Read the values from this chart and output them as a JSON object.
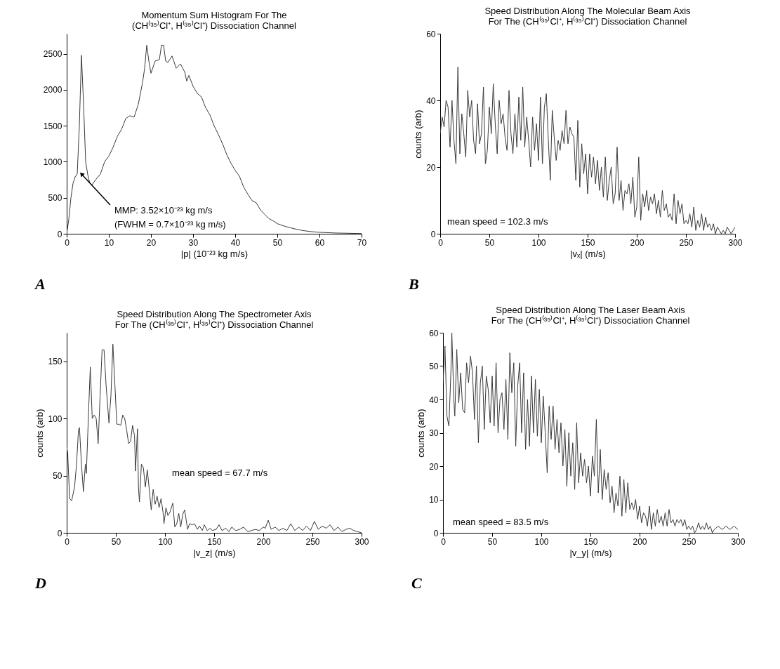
{
  "chart_data": [
    {
      "type": "line",
      "title": "Momentum Sum Histogram For The\n(CH⁽³⁵⁾Cl⁺, H⁽³⁵⁾Cl⁺) Dissociation Channel",
      "xlabel": "|p| (10⁻²³ kg m/s)",
      "xlim": [
        0,
        70
      ],
      "ylim": [
        0,
        2780
      ],
      "xticks": [
        0,
        10,
        20,
        30,
        40,
        50,
        60,
        70
      ],
      "yticks": [
        0,
        500,
        1000,
        1500,
        2000,
        2500
      ],
      "series": [
        {
          "color": "#3a3a3a",
          "x": [
            0,
            0.5,
            1,
            1.5,
            2,
            2.5,
            3,
            3.5,
            4,
            4.5,
            5,
            5.5,
            6,
            7,
            8,
            9,
            10,
            11,
            12,
            13,
            13.5,
            14,
            15,
            16,
            17,
            18,
            18.5,
            19,
            19.5,
            20,
            21,
            22,
            22.5,
            23,
            23.5,
            24,
            25,
            26,
            27,
            28,
            28.5,
            29,
            30,
            31,
            32,
            33,
            34,
            35,
            36,
            37,
            38,
            39,
            40,
            41,
            42,
            43,
            44,
            45,
            46,
            47,
            48,
            49,
            50,
            52,
            54,
            56,
            58,
            60,
            62,
            64,
            66,
            68,
            70
          ],
          "values": [
            0,
            200,
            500,
            700,
            790,
            830,
            1500,
            2480,
            1800,
            1000,
            820,
            700,
            680,
            760,
            830,
            1000,
            1080,
            1200,
            1350,
            1450,
            1520,
            1600,
            1640,
            1620,
            1800,
            2100,
            2300,
            2620,
            2400,
            2230,
            2400,
            2420,
            2620,
            2620,
            2400,
            2380,
            2470,
            2300,
            2360,
            2250,
            2120,
            2200,
            2050,
            1950,
            1900,
            1750,
            1650,
            1500,
            1380,
            1250,
            1100,
            980,
            880,
            800,
            650,
            550,
            460,
            430,
            330,
            270,
            210,
            180,
            140,
            100,
            70,
            45,
            30,
            20,
            15,
            10,
            8,
            5,
            3
          ]
        }
      ],
      "annotations": [
        {
          "text": "MMP: 3.52×10⁻²³ kg m/s",
          "x": 3.52,
          "y": 830
        },
        "(FWHM = 0.7×10⁻²³ kg m/s)",
        "A"
      ]
    },
    {
      "type": "line",
      "title": "Speed Distribution Along The Molecular Beam Axis\nFor The (CH⁽³⁵⁾Cl⁺, H⁽³⁵⁾Cl⁺) Dissociation Channel",
      "xlabel": "|vₓ| (m/s)",
      "ylabel": "counts (arb)",
      "xlim": [
        0,
        300
      ],
      "ylim": [
        0,
        60
      ],
      "xticks": [
        0,
        50,
        100,
        150,
        200,
        250,
        300
      ],
      "yticks": [
        0,
        20,
        40,
        60
      ],
      "series": [
        {
          "color": "#3a3a3a",
          "x": [
            0,
            2,
            4,
            6,
            8,
            10,
            12,
            14,
            16,
            18,
            20,
            22,
            24,
            26,
            28,
            30,
            32,
            34,
            36,
            38,
            40,
            42,
            44,
            46,
            48,
            50,
            52,
            54,
            56,
            58,
            60,
            62,
            64,
            66,
            68,
            70,
            72,
            74,
            76,
            78,
            80,
            82,
            84,
            86,
            88,
            90,
            92,
            94,
            96,
            98,
            100,
            102,
            104,
            106,
            108,
            110,
            112,
            114,
            116,
            118,
            120,
            122,
            124,
            126,
            128,
            130,
            132,
            134,
            136,
            138,
            140,
            142,
            144,
            146,
            148,
            150,
            152,
            154,
            156,
            158,
            160,
            162,
            164,
            166,
            168,
            170,
            172,
            174,
            176,
            178,
            180,
            182,
            184,
            186,
            188,
            190,
            192,
            194,
            196,
            198,
            200,
            202,
            204,
            206,
            208,
            210,
            212,
            214,
            216,
            218,
            220,
            222,
            224,
            226,
            228,
            230,
            232,
            234,
            236,
            238,
            240,
            242,
            244,
            246,
            248,
            250,
            252,
            254,
            256,
            258,
            260,
            262,
            264,
            266,
            268,
            270,
            272,
            274,
            276,
            278,
            280,
            282,
            284,
            286,
            288,
            290,
            292,
            296,
            300
          ],
          "values": [
            30,
            35,
            32,
            40,
            38,
            26,
            40,
            28,
            21,
            50,
            24,
            36,
            30,
            23,
            43,
            35,
            40,
            28,
            24,
            39,
            27,
            30,
            44,
            21,
            25,
            38,
            30,
            45,
            33,
            24,
            40,
            33,
            36,
            29,
            25,
            43,
            30,
            24,
            36,
            26,
            41,
            28,
            44,
            26,
            35,
            28,
            20,
            35,
            25,
            33,
            22,
            41,
            21,
            38,
            42,
            28,
            16,
            37,
            29,
            22,
            28,
            25,
            31,
            27,
            37,
            27,
            32,
            30,
            29,
            16,
            34,
            14,
            27,
            18,
            24,
            12,
            24,
            17,
            23,
            15,
            22,
            13,
            20,
            11,
            23,
            10,
            16,
            20,
            9,
            12,
            26,
            10,
            16,
            7,
            13,
            12,
            15,
            9,
            17,
            5,
            8,
            23,
            4,
            12,
            8,
            13,
            7,
            11,
            9,
            12,
            6,
            10,
            5,
            13,
            7,
            9,
            5,
            6,
            4,
            12,
            3,
            10,
            6,
            9,
            3,
            4,
            3,
            6,
            2,
            8,
            1,
            4,
            2,
            6,
            1,
            5,
            2,
            3,
            1,
            3,
            0,
            2,
            1,
            0,
            1,
            0,
            2,
            0,
            2
          ]
        }
      ],
      "annotations": [
        "mean speed = 102.3 m/s",
        "B"
      ]
    },
    {
      "type": "line",
      "title": "Speed Distribution Along The Spectrometer Axis\nFor The (CH⁽³⁵⁾Cl⁺, H⁽³⁵⁾Cl⁺) Dissociation Channel",
      "xlabel": "|v_z| (m/s)",
      "ylabel": "counts (arb)",
      "xlim": [
        0,
        300
      ],
      "ylim": [
        0,
        175
      ],
      "xticks": [
        0,
        50,
        100,
        150,
        200,
        250,
        300
      ],
      "yticks": [
        0,
        50,
        100,
        150
      ],
      "series": [
        {
          "color": "#3a3a3a",
          "x": [
            0,
            1,
            3,
            5,
            8,
            10,
            12,
            13,
            15,
            17,
            19,
            20,
            22,
            24,
            26,
            28,
            30,
            32,
            34,
            36,
            38,
            40,
            43,
            45,
            47,
            49,
            51,
            53,
            55,
            57,
            59,
            61,
            63,
            65,
            67,
            69,
            70,
            72,
            73,
            74,
            76,
            78,
            80,
            82,
            84,
            86,
            88,
            90,
            92,
            94,
            96,
            98,
            99,
            101,
            103,
            105,
            108,
            110,
            112,
            114,
            116,
            118,
            120,
            123,
            125,
            128,
            130,
            133,
            135,
            138,
            140,
            143,
            146,
            148,
            152,
            155,
            158,
            162,
            165,
            168,
            172,
            176,
            180,
            184,
            188,
            192,
            196,
            200,
            202,
            205,
            208,
            212,
            216,
            220,
            224,
            228,
            232,
            236,
            240,
            244,
            248,
            252,
            256,
            260,
            264,
            268,
            272,
            276,
            280,
            284,
            288,
            292,
            296,
            300
          ],
          "values": [
            75,
            70,
            30,
            28,
            40,
            60,
            90,
            92,
            60,
            36,
            60,
            52,
            100,
            145,
            100,
            103,
            100,
            78,
            120,
            160,
            160,
            130,
            96,
            120,
            165,
            130,
            95,
            95,
            94,
            103,
            100,
            90,
            78,
            80,
            94,
            85,
            54,
            91,
            40,
            27,
            60,
            57,
            40,
            55,
            38,
            20,
            38,
            25,
            32,
            22,
            30,
            18,
            8,
            22,
            15,
            18,
            26,
            5,
            8,
            17,
            5,
            16,
            20,
            3,
            8,
            7,
            8,
            3,
            6,
            2,
            7,
            2,
            4,
            2,
            3,
            7,
            2,
            4,
            1,
            5,
            2,
            3,
            5,
            1,
            2,
            3,
            2,
            5,
            4,
            11,
            3,
            5,
            2,
            4,
            2,
            8,
            2,
            5,
            2,
            6,
            2,
            10,
            3,
            6,
            4,
            7,
            2,
            5,
            1,
            3,
            4,
            2,
            1,
            0
          ]
        }
      ],
      "annotations": [
        "mean speed = 67.7 m/s",
        "D"
      ]
    },
    {
      "type": "line",
      "title": "Speed Distribution Along The Laser Beam Axis\nFor The (CH⁽³⁵⁾Cl⁺, H⁽³⁵⁾Cl⁺) Dissociation Channel",
      "xlabel": "|v_y| (m/s)",
      "ylabel": "counts (arb)",
      "xlim": [
        0,
        300
      ],
      "ylim": [
        0,
        60
      ],
      "xticks": [
        0,
        50,
        100,
        150,
        200,
        250,
        300
      ],
      "yticks": [
        0,
        10,
        20,
        30,
        40,
        50,
        60
      ],
      "series": [
        {
          "color": "#3a3a3a",
          "x": [
            0,
            2,
            4,
            6,
            8,
            9,
            11,
            12,
            14,
            16,
            18,
            20,
            22,
            24,
            26,
            28,
            30,
            32,
            34,
            36,
            38,
            40,
            42,
            44,
            46,
            48,
            50,
            52,
            54,
            56,
            58,
            60,
            62,
            64,
            66,
            68,
            70,
            72,
            74,
            76,
            78,
            80,
            82,
            84,
            86,
            88,
            90,
            92,
            94,
            96,
            98,
            100,
            102,
            104,
            106,
            108,
            110,
            112,
            114,
            116,
            118,
            120,
            122,
            124,
            126,
            128,
            130,
            132,
            134,
            136,
            138,
            140,
            142,
            144,
            146,
            148,
            150,
            152,
            154,
            156,
            158,
            160,
            162,
            164,
            166,
            168,
            170,
            172,
            174,
            176,
            178,
            180,
            182,
            184,
            186,
            188,
            190,
            192,
            194,
            196,
            198,
            200,
            202,
            204,
            206,
            208,
            210,
            212,
            214,
            216,
            218,
            220,
            222,
            224,
            226,
            228,
            230,
            232,
            234,
            236,
            238,
            240,
            242,
            244,
            246,
            248,
            250,
            252,
            254,
            256,
            258,
            260,
            262,
            264,
            266,
            268,
            270,
            272,
            274,
            276,
            280,
            284,
            288,
            292,
            296,
            300
          ],
          "values": [
            45,
            56,
            35,
            32,
            48,
            60,
            40,
            35,
            55,
            39,
            48,
            37,
            36,
            51,
            45,
            53,
            48,
            34,
            50,
            27,
            45,
            50,
            31,
            47,
            43,
            33,
            47,
            32,
            51,
            30,
            40,
            42,
            31,
            46,
            28,
            54,
            42,
            51,
            26,
            44,
            51,
            30,
            48,
            25,
            40,
            26,
            47,
            30,
            46,
            29,
            43,
            27,
            41,
            30,
            18,
            38,
            28,
            38,
            25,
            34,
            24,
            33,
            20,
            31,
            14,
            30,
            17,
            27,
            13,
            33,
            15,
            24,
            17,
            22,
            15,
            20,
            11,
            23,
            17,
            34,
            12,
            25,
            10,
            19,
            13,
            18,
            9,
            14,
            6,
            12,
            8,
            17,
            5,
            16,
            6,
            15,
            7,
            9,
            7,
            10,
            4,
            8,
            3,
            6,
            5,
            2,
            8,
            1,
            6,
            2,
            7,
            3,
            5,
            2,
            6,
            2,
            7,
            3,
            4,
            2,
            4,
            3,
            4,
            2,
            4,
            1,
            2,
            1,
            2,
            0,
            1,
            3,
            1,
            2,
            1,
            3,
            1,
            2,
            0,
            1,
            2,
            1,
            2,
            1,
            2,
            1
          ]
        }
      ],
      "annotations": [
        "mean speed = 83.5 m/s",
        "C"
      ]
    }
  ]
}
